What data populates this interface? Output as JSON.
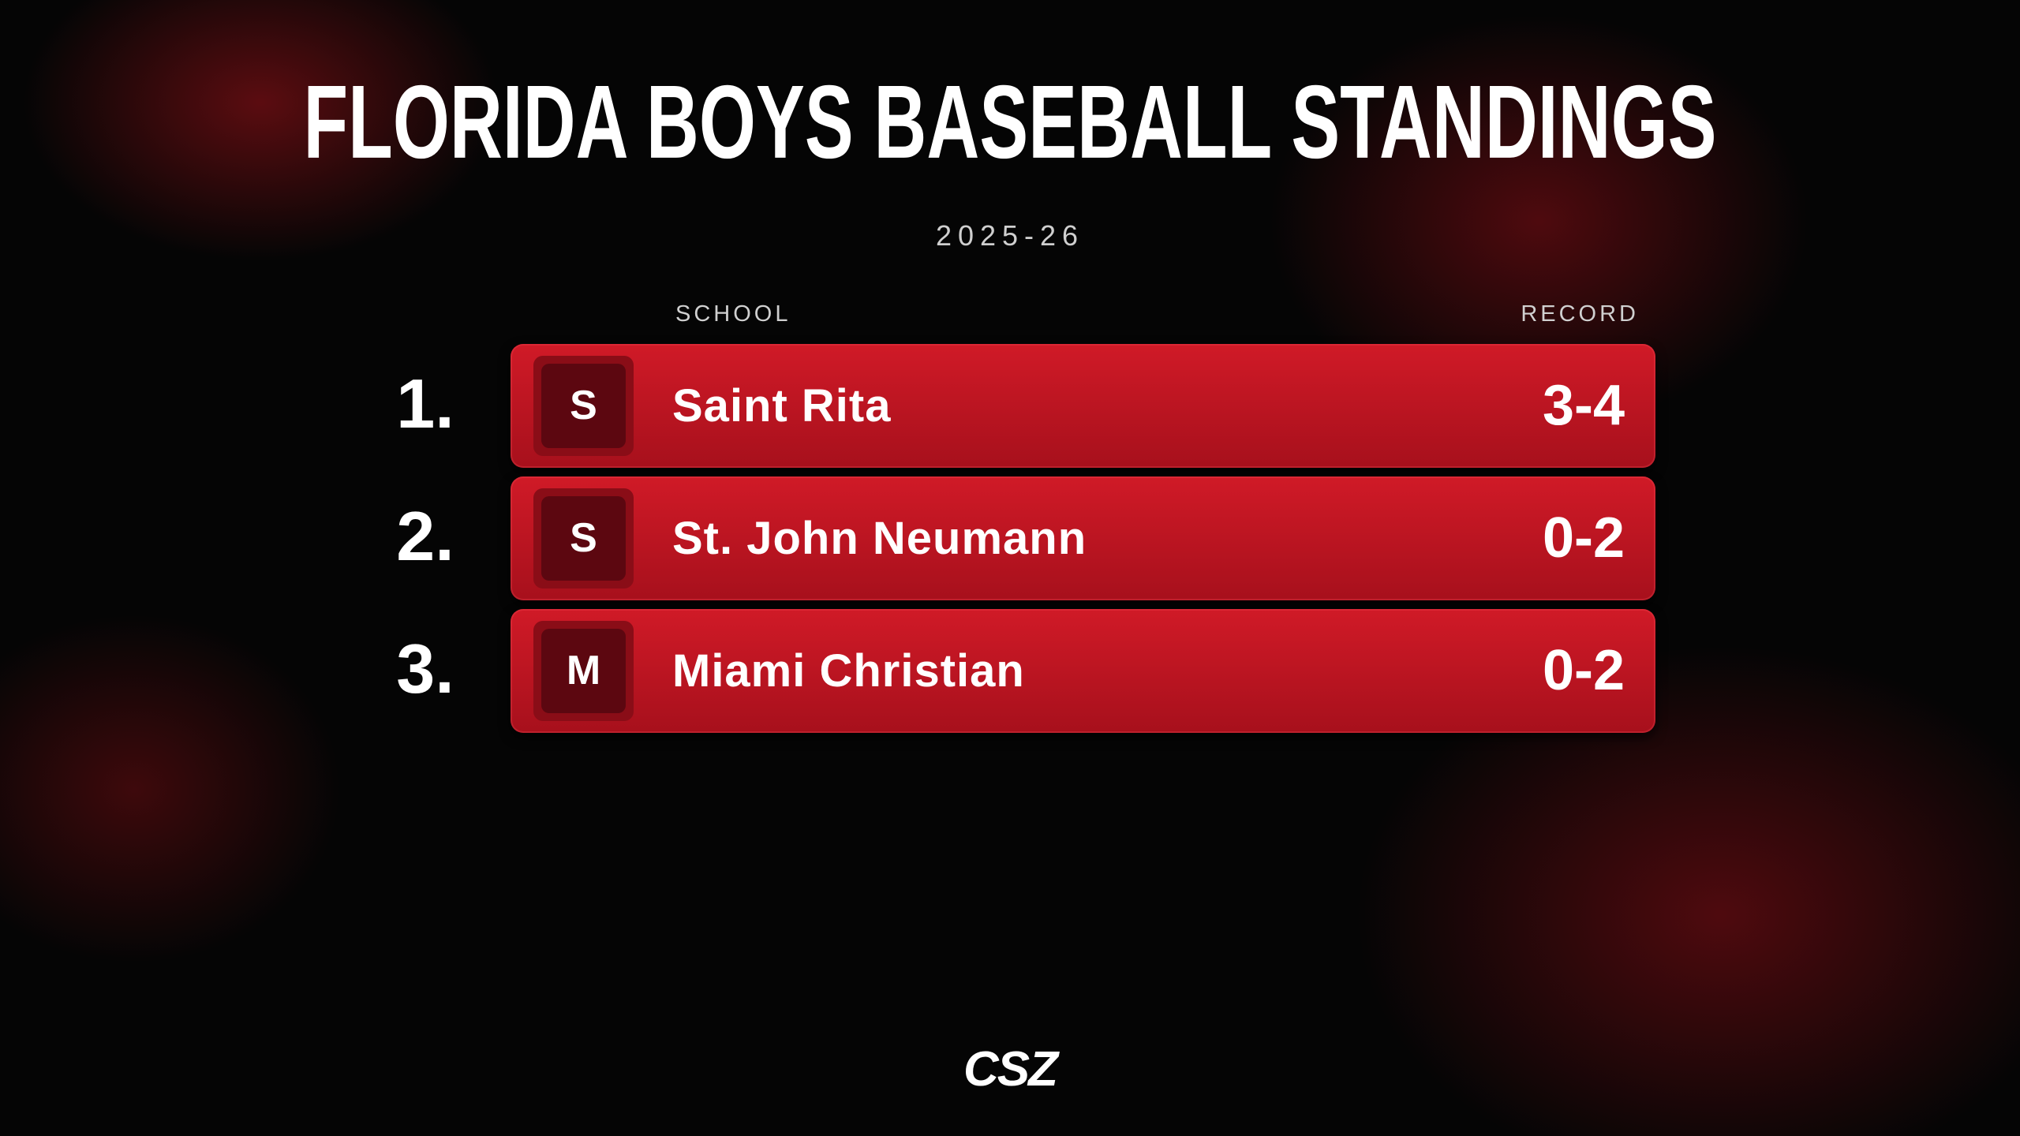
{
  "header": {
    "title": "FLORIDA BOYS BASEBALL STANDINGS",
    "season": "2025-26"
  },
  "table": {
    "columns": [
      "SCHOOL",
      "RECORD"
    ],
    "rows": [
      {
        "rank": "1.",
        "initial": "S",
        "school": "Saint Rita",
        "record": "3-4"
      },
      {
        "rank": "2.",
        "initial": "S",
        "school": "St. John Neumann",
        "record": "0-2"
      },
      {
        "rank": "3.",
        "initial": "M",
        "school": "Miami Christian",
        "record": "0-2"
      }
    ]
  },
  "footer": {
    "logo": "CSZ"
  }
}
